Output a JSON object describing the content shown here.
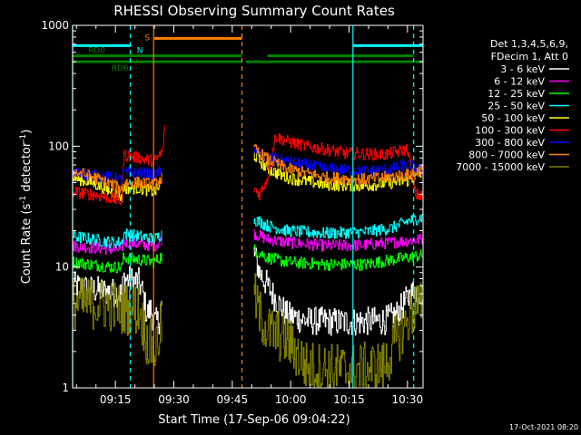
{
  "chart_data": {
    "type": "line",
    "title": "RHESSI Observing Summary Count Rates",
    "xlabel": "Start Time (17-Sep-06 09:04:22)",
    "ylabel_pre": "Count Rate (s",
    "ylabel_sup": "-1",
    "ylabel_mid": " detector",
    "ylabel_sup2": "-1",
    "ylabel_post": ")",
    "y_scale": "log",
    "ylim": [
      1,
      1000
    ],
    "xlim_minutes": [
      0,
      90
    ],
    "x_ticks": [
      {
        "t": 11,
        "label": "09:15"
      },
      {
        "t": 26,
        "label": "09:30"
      },
      {
        "t": 41,
        "label": "09:45"
      },
      {
        "t": 56,
        "label": "10:00"
      },
      {
        "t": 71,
        "label": "10:15"
      },
      {
        "t": 86,
        "label": "10:30"
      }
    ],
    "y_ticks": [
      {
        "v": 1,
        "label": "1"
      },
      {
        "v": 10,
        "label": "10"
      },
      {
        "v": 100,
        "label": "100"
      },
      {
        "v": 1000,
        "label": "1000"
      }
    ],
    "legend_header": [
      "Det 1,3,4,5,6,9,",
      "FDecim 1, Att 0"
    ],
    "series": [
      {
        "name": "3 - 6 keV",
        "color": "#ffffff",
        "seg1": [
          [
            0,
            7
          ],
          [
            5,
            6.5
          ],
          [
            10,
            6.2
          ],
          [
            12.6,
            6.0
          ],
          [
            13,
            8
          ],
          [
            17,
            7.5
          ],
          [
            18,
            6
          ],
          [
            19,
            4
          ],
          [
            20,
            4.5
          ],
          [
            21,
            3.5
          ],
          [
            22,
            3.5
          ],
          [
            23,
            5
          ]
        ],
        "seg2": [
          [
            46.5,
            13
          ],
          [
            48,
            9
          ],
          [
            50,
            7
          ],
          [
            52,
            5.5
          ],
          [
            55,
            4
          ],
          [
            60,
            3.6
          ],
          [
            70,
            3.5
          ],
          [
            80,
            3.6
          ],
          [
            83,
            4
          ],
          [
            86,
            5.5
          ],
          [
            88,
            6.5
          ],
          [
            90,
            6
          ]
        ]
      },
      {
        "name": "6 - 12 keV",
        "color": "#ff00ff",
        "seg1": [
          [
            0,
            15
          ],
          [
            5,
            14.5
          ],
          [
            10,
            14
          ],
          [
            12.6,
            14
          ],
          [
            13,
            16
          ],
          [
            17,
            15.5
          ],
          [
            21,
            15
          ],
          [
            23,
            17
          ]
        ],
        "seg2": [
          [
            46.5,
            19
          ],
          [
            50,
            17
          ],
          [
            55,
            16
          ],
          [
            65,
            15
          ],
          [
            75,
            15.2
          ],
          [
            82,
            16
          ],
          [
            86,
            16.5
          ],
          [
            90,
            17
          ]
        ]
      },
      {
        "name": "12 - 25 keV",
        "color": "#00ff00",
        "seg1": [
          [
            0,
            11
          ],
          [
            5,
            10.5
          ],
          [
            10,
            10
          ],
          [
            12.6,
            10
          ],
          [
            13,
            12
          ],
          [
            17,
            11.5
          ],
          [
            21,
            11
          ],
          [
            23,
            12.5
          ]
        ],
        "seg2": [
          [
            46.5,
            14
          ],
          [
            50,
            12
          ],
          [
            55,
            11
          ],
          [
            65,
            10.5
          ],
          [
            75,
            10.5
          ],
          [
            82,
            11.5
          ],
          [
            86,
            12
          ],
          [
            90,
            12.5
          ]
        ]
      },
      {
        "name": "25 - 50 keV",
        "color": "#00ffff",
        "seg1": [
          [
            0,
            18
          ],
          [
            5,
            17
          ],
          [
            10,
            16
          ],
          [
            12.6,
            16
          ],
          [
            13,
            19
          ],
          [
            17,
            18
          ],
          [
            21,
            17
          ],
          [
            23,
            19
          ]
        ],
        "seg2": [
          [
            46.5,
            25
          ],
          [
            50,
            22
          ],
          [
            55,
            20
          ],
          [
            65,
            19
          ],
          [
            75,
            19.5
          ],
          [
            82,
            21
          ],
          [
            86,
            24
          ],
          [
            90,
            26
          ]
        ]
      },
      {
        "name": "50 - 100 keV",
        "color": "#ffff00",
        "seg1": [
          [
            0,
            55
          ],
          [
            5,
            50
          ],
          [
            10,
            42
          ],
          [
            12.6,
            38
          ],
          [
            13,
            45
          ],
          [
            17,
            45
          ],
          [
            21,
            42
          ],
          [
            23,
            50
          ]
        ],
        "seg2": [
          [
            46.5,
            85
          ],
          [
            50,
            65
          ],
          [
            55,
            55
          ],
          [
            65,
            48
          ],
          [
            75,
            47
          ],
          [
            82,
            50
          ],
          [
            86,
            52
          ],
          [
            90,
            60
          ]
        ]
      },
      {
        "name": "100 - 300 keV",
        "color": "#ff0000",
        "seg1": [
          [
            0,
            42
          ],
          [
            5,
            40
          ],
          [
            10,
            37
          ],
          [
            12.6,
            35
          ],
          [
            13,
            85
          ],
          [
            17,
            80
          ],
          [
            21,
            75
          ],
          [
            23,
            90
          ],
          [
            23.6,
            140
          ]
        ],
        "seg2": [
          [
            46.5,
            45
          ],
          [
            48,
            40
          ],
          [
            50,
            55
          ],
          [
            52,
            120
          ],
          [
            55,
            110
          ],
          [
            60,
            100
          ],
          [
            70,
            88
          ],
          [
            80,
            85
          ],
          [
            86,
            95
          ],
          [
            88,
            40
          ],
          [
            90,
            38
          ]
        ]
      },
      {
        "name": "300 - 800 keV",
        "color": "#0000ff",
        "seg1": [
          [
            0,
            60
          ],
          [
            5,
            58
          ],
          [
            10,
            55
          ],
          [
            12.6,
            52
          ],
          [
            13,
            60
          ],
          [
            17,
            60
          ],
          [
            21,
            58
          ],
          [
            23,
            65
          ]
        ],
        "seg2": [
          [
            46.5,
            90
          ],
          [
            50,
            80
          ],
          [
            55,
            75
          ],
          [
            65,
            65
          ],
          [
            75,
            62
          ],
          [
            82,
            65
          ],
          [
            86,
            70
          ],
          [
            90,
            62
          ]
        ]
      },
      {
        "name": "800 - 7000 keV",
        "color": "#ff8000",
        "seg1": [
          [
            0,
            62
          ],
          [
            5,
            56
          ],
          [
            10,
            48
          ],
          [
            12.6,
            44
          ],
          [
            13,
            50
          ],
          [
            17,
            50
          ],
          [
            21,
            48
          ],
          [
            23,
            55
          ]
        ],
        "seg2": [
          [
            46.5,
            95
          ],
          [
            50,
            78
          ],
          [
            55,
            65
          ],
          [
            65,
            55
          ],
          [
            75,
            53
          ],
          [
            82,
            56
          ],
          [
            86,
            58
          ],
          [
            90,
            65
          ]
        ]
      },
      {
        "name": "7000 - 15000 keV",
        "color": "#808000",
        "seg1": [
          [
            0,
            5
          ],
          [
            5,
            5
          ],
          [
            10,
            4.8
          ],
          [
            12.6,
            4.5
          ],
          [
            13,
            4.5
          ],
          [
            17,
            4.5
          ],
          [
            19,
            2.5
          ],
          [
            21,
            2
          ],
          [
            23,
            3.5
          ]
        ],
        "seg2": [
          [
            46.5,
            6
          ],
          [
            48,
            4
          ],
          [
            50,
            3
          ],
          [
            55,
            2.5
          ],
          [
            60,
            1.5
          ],
          [
            70,
            1.4
          ],
          [
            80,
            1.5
          ],
          [
            83,
            2.5
          ],
          [
            86,
            3.5
          ],
          [
            88,
            5
          ],
          [
            90,
            4.5
          ]
        ]
      }
    ],
    "flag_bars": [
      {
        "label": "RD0",
        "color": "#008000",
        "v": 560,
        "segments": [
          [
            0,
            43.5
          ],
          [
            50,
            87.5
          ]
        ]
      },
      {
        "label": "RD6",
        "color": "#008000",
        "v": 500,
        "segments": [
          [
            0,
            43.5
          ],
          [
            44.5,
            50
          ],
          [
            50,
            87.5
          ],
          [
            88,
            90
          ]
        ]
      },
      {
        "label": "N",
        "color": "#00ffff",
        "v": 680,
        "segments": [
          [
            0,
            15
          ],
          [
            72,
            90
          ]
        ]
      },
      {
        "label": "S",
        "color": "#ff8000",
        "v": 780,
        "segments": [
          [
            21,
            43.5
          ]
        ]
      }
    ],
    "vlines": [
      {
        "t": 0,
        "color": "#00ffff",
        "dash": false
      },
      {
        "t": 14.8,
        "color": "#00ffff",
        "dash": true
      },
      {
        "t": 20.8,
        "color": "#ff8000",
        "dash": false
      },
      {
        "t": 43.5,
        "color": "#ff8000",
        "dash": true
      },
      {
        "t": 72,
        "color": "#00ffff",
        "dash": false
      },
      {
        "t": 87.6,
        "color": "#00ffff",
        "dash": true
      }
    ],
    "gap": [
      24,
      46.5
    ],
    "timestamp": "17-Oct-2021 08:20"
  }
}
